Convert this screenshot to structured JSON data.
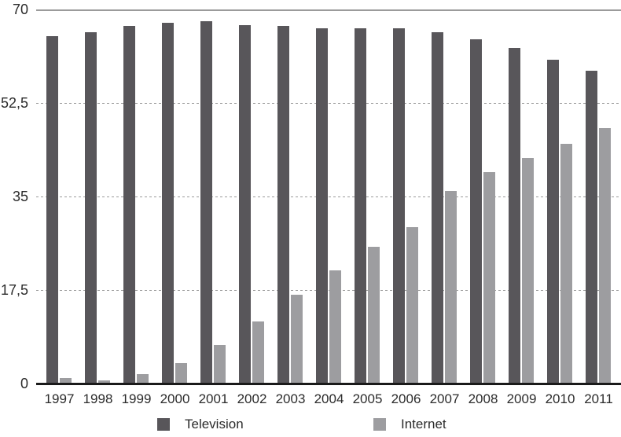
{
  "chart_data": {
    "type": "bar",
    "title": "",
    "categories": [
      "1997",
      "1998",
      "1999",
      "2000",
      "2001",
      "2002",
      "2003",
      "2004",
      "2005",
      "2006",
      "2007",
      "2008",
      "2009",
      "2010",
      "2011"
    ],
    "series": [
      {
        "name": "Television",
        "color": "#58565A",
        "values": [
          65.0,
          65.8,
          66.9,
          67.5,
          67.8,
          67.1,
          66.9,
          66.4,
          66.4,
          66.4,
          65.8,
          64.4,
          62.8,
          60.6,
          58.5
        ]
      },
      {
        "name": "Internet",
        "color": "#9D9DA0",
        "values": [
          1.0,
          0.6,
          1.7,
          3.8,
          7.2,
          11.6,
          16.6,
          21.2,
          25.6,
          29.3,
          36.0,
          39.6,
          42.2,
          44.9,
          47.8
        ]
      }
    ],
    "xlabel": "",
    "ylabel": "",
    "ylim": [
      0,
      70
    ],
    "yticks": [
      0,
      17.5,
      35,
      52.5,
      70
    ],
    "ytick_labels": [
      "0",
      "17,5",
      "35",
      "52,5",
      "70"
    ],
    "grid": "horizontal-dotted",
    "legend_position": "bottom",
    "axis_color": "#1A1A1A",
    "gridline_color": "#9B9B9B",
    "text_color": "#2B2B2B",
    "background": "#FFFFFF"
  }
}
